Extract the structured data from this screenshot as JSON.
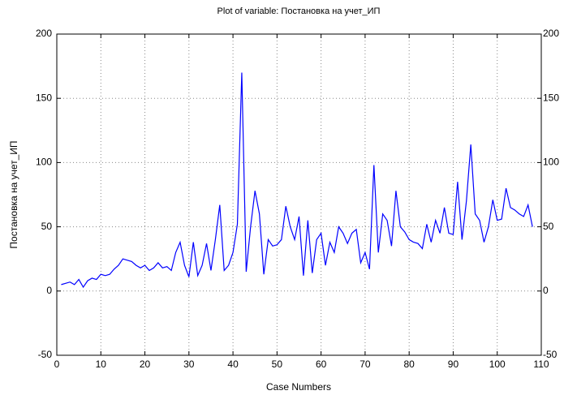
{
  "chart_data": {
    "type": "line",
    "title": "Plot of variable: Постановка на учет_ИП",
    "xlabel": "Case Numbers",
    "ylabel": "Постановка на учет_ИП",
    "x": [
      1,
      2,
      3,
      4,
      5,
      6,
      7,
      8,
      9,
      10,
      11,
      12,
      13,
      14,
      15,
      16,
      17,
      18,
      19,
      20,
      21,
      22,
      23,
      24,
      25,
      26,
      27,
      28,
      29,
      30,
      31,
      32,
      33,
      34,
      35,
      36,
      37,
      38,
      39,
      40,
      41,
      42,
      43,
      44,
      45,
      46,
      47,
      48,
      49,
      50,
      51,
      52,
      53,
      54,
      55,
      56,
      57,
      58,
      59,
      60,
      61,
      62,
      63,
      64,
      65,
      66,
      67,
      68,
      69,
      70,
      71,
      72,
      73,
      74,
      75,
      76,
      77,
      78,
      79,
      80,
      81,
      82,
      83,
      84,
      85,
      86,
      87,
      88,
      89,
      90,
      91,
      92,
      93,
      94,
      95,
      96,
      97,
      98,
      99,
      100,
      101,
      102,
      103,
      104,
      105,
      106,
      107,
      108
    ],
    "series": [
      {
        "name": "Постановка на учет_ИП",
        "color": "#0000ff",
        "values": [
          5,
          6,
          7,
          5,
          9,
          3,
          8,
          10,
          9,
          13,
          12,
          13,
          17,
          20,
          25,
          24,
          23,
          20,
          18,
          20,
          16,
          18,
          22,
          18,
          19,
          16,
          30,
          38,
          20,
          11,
          38,
          12,
          20,
          37,
          16,
          40,
          67,
          16,
          20,
          30,
          52,
          170,
          15,
          50,
          78,
          60,
          13,
          40,
          35,
          36,
          40,
          66,
          50,
          40,
          58,
          12,
          55,
          14,
          40,
          45,
          20,
          38,
          30,
          50,
          45,
          37,
          45,
          48,
          22,
          30,
          17,
          98,
          30,
          60,
          55,
          35,
          78,
          50,
          46,
          40,
          38,
          37,
          33,
          52,
          38,
          55,
          45,
          65,
          45,
          44,
          85,
          40,
          70,
          114,
          60,
          55,
          38,
          50,
          71,
          55,
          56,
          80,
          65,
          63,
          60,
          58,
          67,
          50
        ]
      }
    ],
    "xlim": [
      0,
      110
    ],
    "xticks": [
      0,
      10,
      20,
      30,
      40,
      50,
      60,
      70,
      80,
      90,
      100,
      110
    ],
    "ylim": [
      -50,
      200
    ],
    "yticks": [
      -50,
      0,
      50,
      100,
      150,
      200
    ],
    "y2lim": [
      -50,
      200
    ],
    "y2ticks": [
      -50,
      0,
      50,
      100,
      150,
      200
    ],
    "grid": true
  }
}
